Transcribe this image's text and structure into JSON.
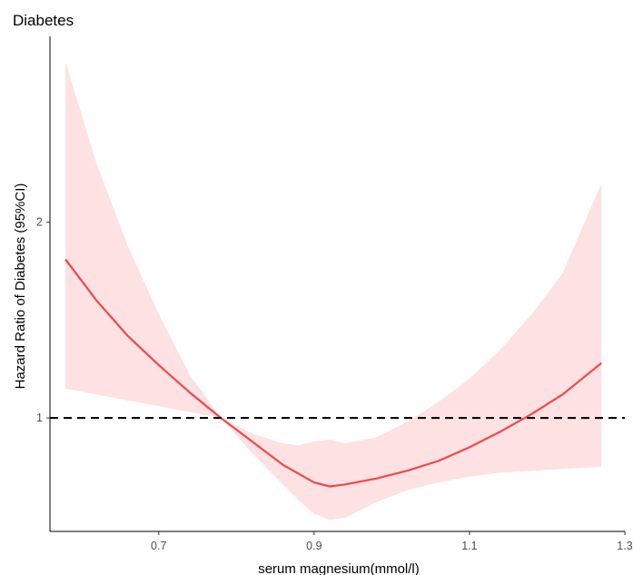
{
  "chart_data": {
    "type": "line",
    "title": "Diabetes",
    "xlabel": "serum magnesium(mmol/l)",
    "ylabel": "Hazard Ratio of Diabetes (95%CI)",
    "xlim": [
      0.56,
      1.3
    ],
    "ylim": [
      0.42,
      2.95
    ],
    "x_ticks": [
      0.7,
      0.9,
      1.1,
      1.3
    ],
    "x_tick_labels": [
      "0.7",
      "0.9",
      "1.1",
      "1.3"
    ],
    "y_ticks": [
      1,
      2
    ],
    "y_tick_labels": [
      "1",
      "2"
    ],
    "reference_line": {
      "y": 1,
      "style": "dashed",
      "color": "#000000"
    },
    "grid": false,
    "colors": {
      "line": "#f0484a",
      "band": "#fde1e3"
    },
    "series": [
      {
        "type": "line",
        "x": [
          0.58,
          0.62,
          0.66,
          0.7,
          0.74,
          0.78,
          0.82,
          0.86,
          0.9,
          0.92,
          0.94,
          0.98,
          1.02,
          1.06,
          1.1,
          1.14,
          1.18,
          1.22,
          1.27
        ],
        "y": [
          1.81,
          1.6,
          1.42,
          1.27,
          1.13,
          1.0,
          0.88,
          0.76,
          0.67,
          0.65,
          0.66,
          0.69,
          0.73,
          0.78,
          0.85,
          0.93,
          1.02,
          1.12,
          1.28
        ]
      },
      {
        "type": "area",
        "x": [
          0.58,
          0.62,
          0.66,
          0.7,
          0.74,
          0.78,
          0.82,
          0.86,
          0.88,
          0.9,
          0.92,
          0.94,
          0.98,
          1.02,
          1.06,
          1.1,
          1.14,
          1.18,
          1.22,
          1.27
        ],
        "lower": [
          1.15,
          1.12,
          1.09,
          1.06,
          1.03,
          1.0,
          0.82,
          0.66,
          0.58,
          0.51,
          0.48,
          0.49,
          0.57,
          0.63,
          0.67,
          0.7,
          0.72,
          0.73,
          0.74,
          0.75
        ],
        "upper": [
          2.82,
          2.3,
          1.88,
          1.53,
          1.22,
          1.0,
          0.92,
          0.87,
          0.86,
          0.88,
          0.89,
          0.87,
          0.9,
          0.98,
          1.08,
          1.2,
          1.35,
          1.53,
          1.74,
          2.2
        ]
      }
    ]
  }
}
